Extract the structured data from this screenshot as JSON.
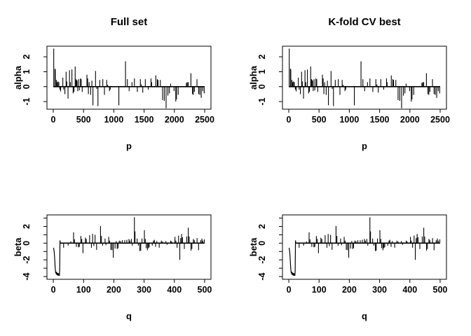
{
  "figure": {
    "background_color": "#ffffff",
    "line_color": "#000000",
    "titles": {
      "left": "Full set",
      "right": "K-fold CV best"
    }
  },
  "chart_data": {
    "type": "line",
    "layout": "2x2 grid; columns show identical series (Full set vs K-fold CV best); top row alpha vs p, bottom row beta vs q",
    "grid": false,
    "legend": null,
    "panels": [
      {
        "title": "Full set",
        "row": 0,
        "col": 0,
        "axes": "alpha",
        "series": "alpha"
      },
      {
        "title": "K-fold CV best",
        "row": 0,
        "col": 1,
        "axes": "alpha",
        "series": "alpha"
      },
      {
        "title": "",
        "row": 1,
        "col": 0,
        "axes": "beta",
        "series": "beta"
      },
      {
        "title": "",
        "row": 1,
        "col": 1,
        "axes": "beta",
        "series": "beta"
      }
    ],
    "axes": {
      "alpha": {
        "xlabel": "p",
        "ylabel": "alpha",
        "xlim": [
          -104,
          2604
        ],
        "ylim": [
          -1.51,
          2.71
        ],
        "xticks": [
          0,
          500,
          1000,
          1500,
          2000,
          2500
        ],
        "xtick_labels": [
          "0",
          "500",
          "1000",
          "1500",
          "2000",
          "2500"
        ],
        "yticks": [
          -1,
          0,
          1,
          2
        ],
        "ytick_labels": [
          "-1",
          "0",
          "1",
          "2"
        ]
      },
      "beta": {
        "xlabel": "q",
        "ylabel": "beta",
        "xlim": [
          -21,
          521
        ],
        "ylim": [
          -4.33,
          3.38
        ],
        "xticks": [
          0,
          100,
          200,
          300,
          400,
          500
        ],
        "xtick_labels": [
          "0",
          "100",
          "200",
          "300",
          "400",
          "500"
        ],
        "yticks": [
          -4,
          -3,
          -2,
          -1,
          0,
          1,
          2,
          3
        ],
        "ytick_labels": [
          "-4",
          "",
          "-2",
          "",
          "0",
          "",
          "2",
          ""
        ]
      }
    },
    "series": {
      "alpha": {
        "baseline": [
          0,
          2500
        ],
        "curve": [],
        "spikes": [
          [
            8,
            2.55
          ],
          [
            28,
            1.2
          ],
          [
            34,
            1.15
          ],
          [
            52,
            0.45
          ],
          [
            62,
            0.3
          ],
          [
            78,
            0.35
          ],
          [
            92,
            0.3
          ],
          [
            108,
            -0.2
          ],
          [
            122,
            -0.32
          ],
          [
            158,
            0.6
          ],
          [
            172,
            -0.2
          ],
          [
            192,
            -0.5
          ],
          [
            212,
            1.0
          ],
          [
            224,
            0.35
          ],
          [
            244,
            -0.8
          ],
          [
            268,
            1.1
          ],
          [
            282,
            0.3
          ],
          [
            308,
            1.15
          ],
          [
            328,
            -0.45
          ],
          [
            342,
            -0.35
          ],
          [
            362,
            1.35
          ],
          [
            374,
            0.5
          ],
          [
            384,
            0.45
          ],
          [
            394,
            0.4
          ],
          [
            404,
            -0.3
          ],
          [
            418,
            0.5
          ],
          [
            430,
            -0.25
          ],
          [
            448,
            0.55
          ],
          [
            462,
            0.5
          ],
          [
            478,
            -0.35
          ],
          [
            556,
            0.8
          ],
          [
            568,
            0.55
          ],
          [
            580,
            -0.5
          ],
          [
            592,
            0.3
          ],
          [
            618,
            -0.55
          ],
          [
            638,
            0.4
          ],
          [
            655,
            -1.25
          ],
          [
            698,
            1.05
          ],
          [
            718,
            -0.15
          ],
          [
            738,
            -1.3
          ],
          [
            768,
            0.45
          ],
          [
            818,
            0.5
          ],
          [
            845,
            -0.55
          ],
          [
            882,
            0.45
          ],
          [
            898,
            0.12
          ],
          [
            928,
            -0.3
          ],
          [
            940,
            -0.2
          ],
          [
            1083,
            -1.25
          ],
          [
            1193,
            1.7
          ],
          [
            1224,
            0.5
          ],
          [
            1253,
            -0.3
          ],
          [
            1300,
            0.3
          ],
          [
            1340,
            0.55
          ],
          [
            1388,
            -0.35
          ],
          [
            1438,
            0.5
          ],
          [
            1455,
            0.15
          ],
          [
            1478,
            -0.4
          ],
          [
            1520,
            0.5
          ],
          [
            1568,
            -0.2
          ],
          [
            1614,
            0.55
          ],
          [
            1624,
            0.3
          ],
          [
            1693,
            0.75
          ],
          [
            1718,
            0.5
          ],
          [
            1730,
            0.45
          ],
          [
            1768,
            0.45
          ],
          [
            1805,
            -0.9
          ],
          [
            1833,
            -0.95
          ],
          [
            1863,
            -1.45
          ],
          [
            1893,
            -0.6
          ],
          [
            1918,
            -0.45
          ],
          [
            1938,
            0.2
          ],
          [
            1995,
            -0.3
          ],
          [
            2023,
            -1.0
          ],
          [
            2035,
            -0.85
          ],
          [
            2063,
            -0.55
          ],
          [
            2198,
            0.25
          ],
          [
            2212,
            0.3
          ],
          [
            2228,
            0.3
          ],
          [
            2273,
            0.9
          ],
          [
            2298,
            -0.5
          ],
          [
            2313,
            -0.55
          ],
          [
            2330,
            -0.35
          ],
          [
            2373,
            0.5
          ],
          [
            2400,
            -0.5
          ],
          [
            2420,
            -0.55
          ],
          [
            2443,
            -0.75
          ],
          [
            2468,
            -0.3
          ],
          [
            2492,
            -0.45
          ]
        ]
      },
      "beta": {
        "baseline": [
          21,
          500
        ],
        "curve": [
          [
            1,
            -0.55
          ],
          [
            3,
            -1.1
          ],
          [
            5,
            -2.1
          ],
          [
            6,
            -2.9
          ],
          [
            7,
            -3.3
          ],
          [
            8,
            -3.6
          ],
          [
            9,
            -3.4
          ],
          [
            10,
            -3.75
          ],
          [
            11,
            -3.5
          ],
          [
            12,
            -3.8
          ],
          [
            13,
            -3.55
          ],
          [
            14,
            -3.85
          ],
          [
            15,
            -3.6
          ],
          [
            16,
            -3.9
          ],
          [
            17,
            -3.6
          ],
          [
            18,
            -3.85
          ],
          [
            19,
            -3.7
          ],
          [
            20,
            -3.9
          ],
          [
            21,
            -3.4
          ],
          [
            22,
            0.33
          ],
          [
            23,
            0
          ]
        ],
        "spikes": [
          [
            34,
            -0.55
          ],
          [
            49,
            -0.3
          ],
          [
            58,
            0.2
          ],
          [
            67,
            1.3
          ],
          [
            70,
            0.45
          ],
          [
            76,
            -0.45
          ],
          [
            83,
            -0.5
          ],
          [
            86,
            -0.45
          ],
          [
            91,
            0.85
          ],
          [
            94,
            0.5
          ],
          [
            98,
            -1.2
          ],
          [
            106,
            0.65
          ],
          [
            109,
            0.5
          ],
          [
            120,
            0.95
          ],
          [
            126,
            -0.55
          ],
          [
            130,
            1.1
          ],
          [
            134,
            -0.35
          ],
          [
            138,
            1.0
          ],
          [
            143,
            -0.8
          ],
          [
            156,
            2.05
          ],
          [
            159,
            0.85
          ],
          [
            163,
            -0.3
          ],
          [
            171,
            0.55
          ],
          [
            174,
            -0.25
          ],
          [
            183,
            0.75
          ],
          [
            186,
            0.3
          ],
          [
            190,
            -0.8
          ],
          [
            194,
            -0.85
          ],
          [
            198,
            -1.75
          ],
          [
            204,
            -0.65
          ],
          [
            208,
            0.25
          ],
          [
            211,
            -0.7
          ],
          [
            214,
            -0.6
          ],
          [
            218,
            0.3
          ],
          [
            222,
            0.25
          ],
          [
            228,
            0.35
          ],
          [
            236,
            0.35
          ],
          [
            243,
            0.4
          ],
          [
            250,
            0.5
          ],
          [
            253,
            0.3
          ],
          [
            258,
            0.5
          ],
          [
            261,
            -0.3
          ],
          [
            268,
            3.1
          ],
          [
            270,
            1.4
          ],
          [
            277,
            0.55
          ],
          [
            281,
            -0.3
          ],
          [
            286,
            -0.95
          ],
          [
            289,
            -0.9
          ],
          [
            293,
            0.55
          ],
          [
            301,
            1.55
          ],
          [
            304,
            0.5
          ],
          [
            307,
            -0.6
          ],
          [
            311,
            -0.85
          ],
          [
            314,
            -0.6
          ],
          [
            317,
            -0.5
          ],
          [
            327,
            -0.3
          ],
          [
            331,
            0.3
          ],
          [
            334,
            0.4
          ],
          [
            338,
            -0.45
          ],
          [
            342,
            0.25
          ],
          [
            350,
            -0.55
          ],
          [
            357,
            0.3
          ],
          [
            361,
            0.2
          ],
          [
            372,
            0.25
          ],
          [
            376,
            -0.2
          ],
          [
            388,
            0.3
          ],
          [
            391,
            0.2
          ],
          [
            402,
            0.75
          ],
          [
            405,
            0.3
          ],
          [
            409,
            -0.55
          ],
          [
            414,
            0.9
          ],
          [
            418,
            -2.0
          ],
          [
            421,
            0.6
          ],
          [
            424,
            1.1
          ],
          [
            427,
            0.7
          ],
          [
            433,
            -0.7
          ],
          [
            441,
            0.8
          ],
          [
            446,
            1.85
          ],
          [
            449,
            0.8
          ],
          [
            455,
            -0.9
          ],
          [
            458,
            -0.7
          ],
          [
            463,
            0.5
          ],
          [
            466,
            0.35
          ],
          [
            475,
            0.6
          ],
          [
            480,
            -0.85
          ],
          [
            487,
            0.35
          ],
          [
            491,
            0.55
          ],
          [
            494,
            0.3
          ],
          [
            499,
            0.45
          ]
        ]
      }
    }
  }
}
